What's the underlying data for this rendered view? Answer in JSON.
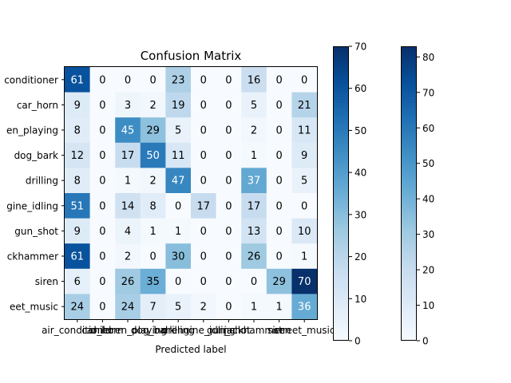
{
  "chart_data": {
    "type": "heatmap",
    "title": "Confusion Matrix",
    "xlabel": "Predicted label",
    "ylabel": "",
    "categories": [
      "air_conditioner",
      "car_horn",
      "children_playing",
      "dog_bark",
      "drilling",
      "engine_idling",
      "gun_shot",
      "jackhammer",
      "siren",
      "street_music"
    ],
    "tick_labels": {
      "y": [
        "conditioner",
        "car_horn",
        "en_playing",
        "dog_bark",
        "drilling",
        "gine_idling",
        "gun_shot",
        "ckhammer",
        "siren",
        "eet_music"
      ],
      "x": [
        "air_conditioner",
        "car_horn",
        "children_playing",
        "dog_bark",
        "drilling",
        "engine_idling",
        "gun_shot",
        "jackhammer",
        "siren",
        "street_music"
      ]
    },
    "matrix": [
      [
        61,
        0,
        0,
        0,
        23,
        0,
        0,
        16,
        0,
        0
      ],
      [
        9,
        0,
        3,
        2,
        19,
        0,
        0,
        5,
        0,
        21
      ],
      [
        8,
        0,
        45,
        29,
        5,
        0,
        0,
        2,
        0,
        11
      ],
      [
        12,
        0,
        17,
        50,
        11,
        0,
        0,
        1,
        0,
        9
      ],
      [
        8,
        0,
        1,
        2,
        47,
        0,
        0,
        37,
        0,
        5
      ],
      [
        51,
        0,
        14,
        8,
        0,
        17,
        0,
        17,
        0,
        0
      ],
      [
        9,
        0,
        4,
        1,
        1,
        0,
        0,
        13,
        0,
        10
      ],
      [
        61,
        0,
        2,
        0,
        30,
        0,
        0,
        26,
        0,
        1
      ],
      [
        6,
        0,
        26,
        35,
        0,
        0,
        0,
        0,
        29,
        70
      ],
      [
        24,
        0,
        24,
        7,
        5,
        2,
        0,
        1,
        1,
        36
      ]
    ],
    "colormap": "Blues",
    "grid": false,
    "colorbars": [
      {
        "range": [
          0,
          70
        ],
        "ticks": [
          "0",
          "10",
          "20",
          "30",
          "40",
          "50",
          "60",
          "70"
        ]
      },
      {
        "range": [
          0,
          83
        ],
        "ticks": [
          "0",
          "10",
          "20",
          "30",
          "40",
          "50",
          "60",
          "70",
          "80"
        ]
      }
    ]
  }
}
